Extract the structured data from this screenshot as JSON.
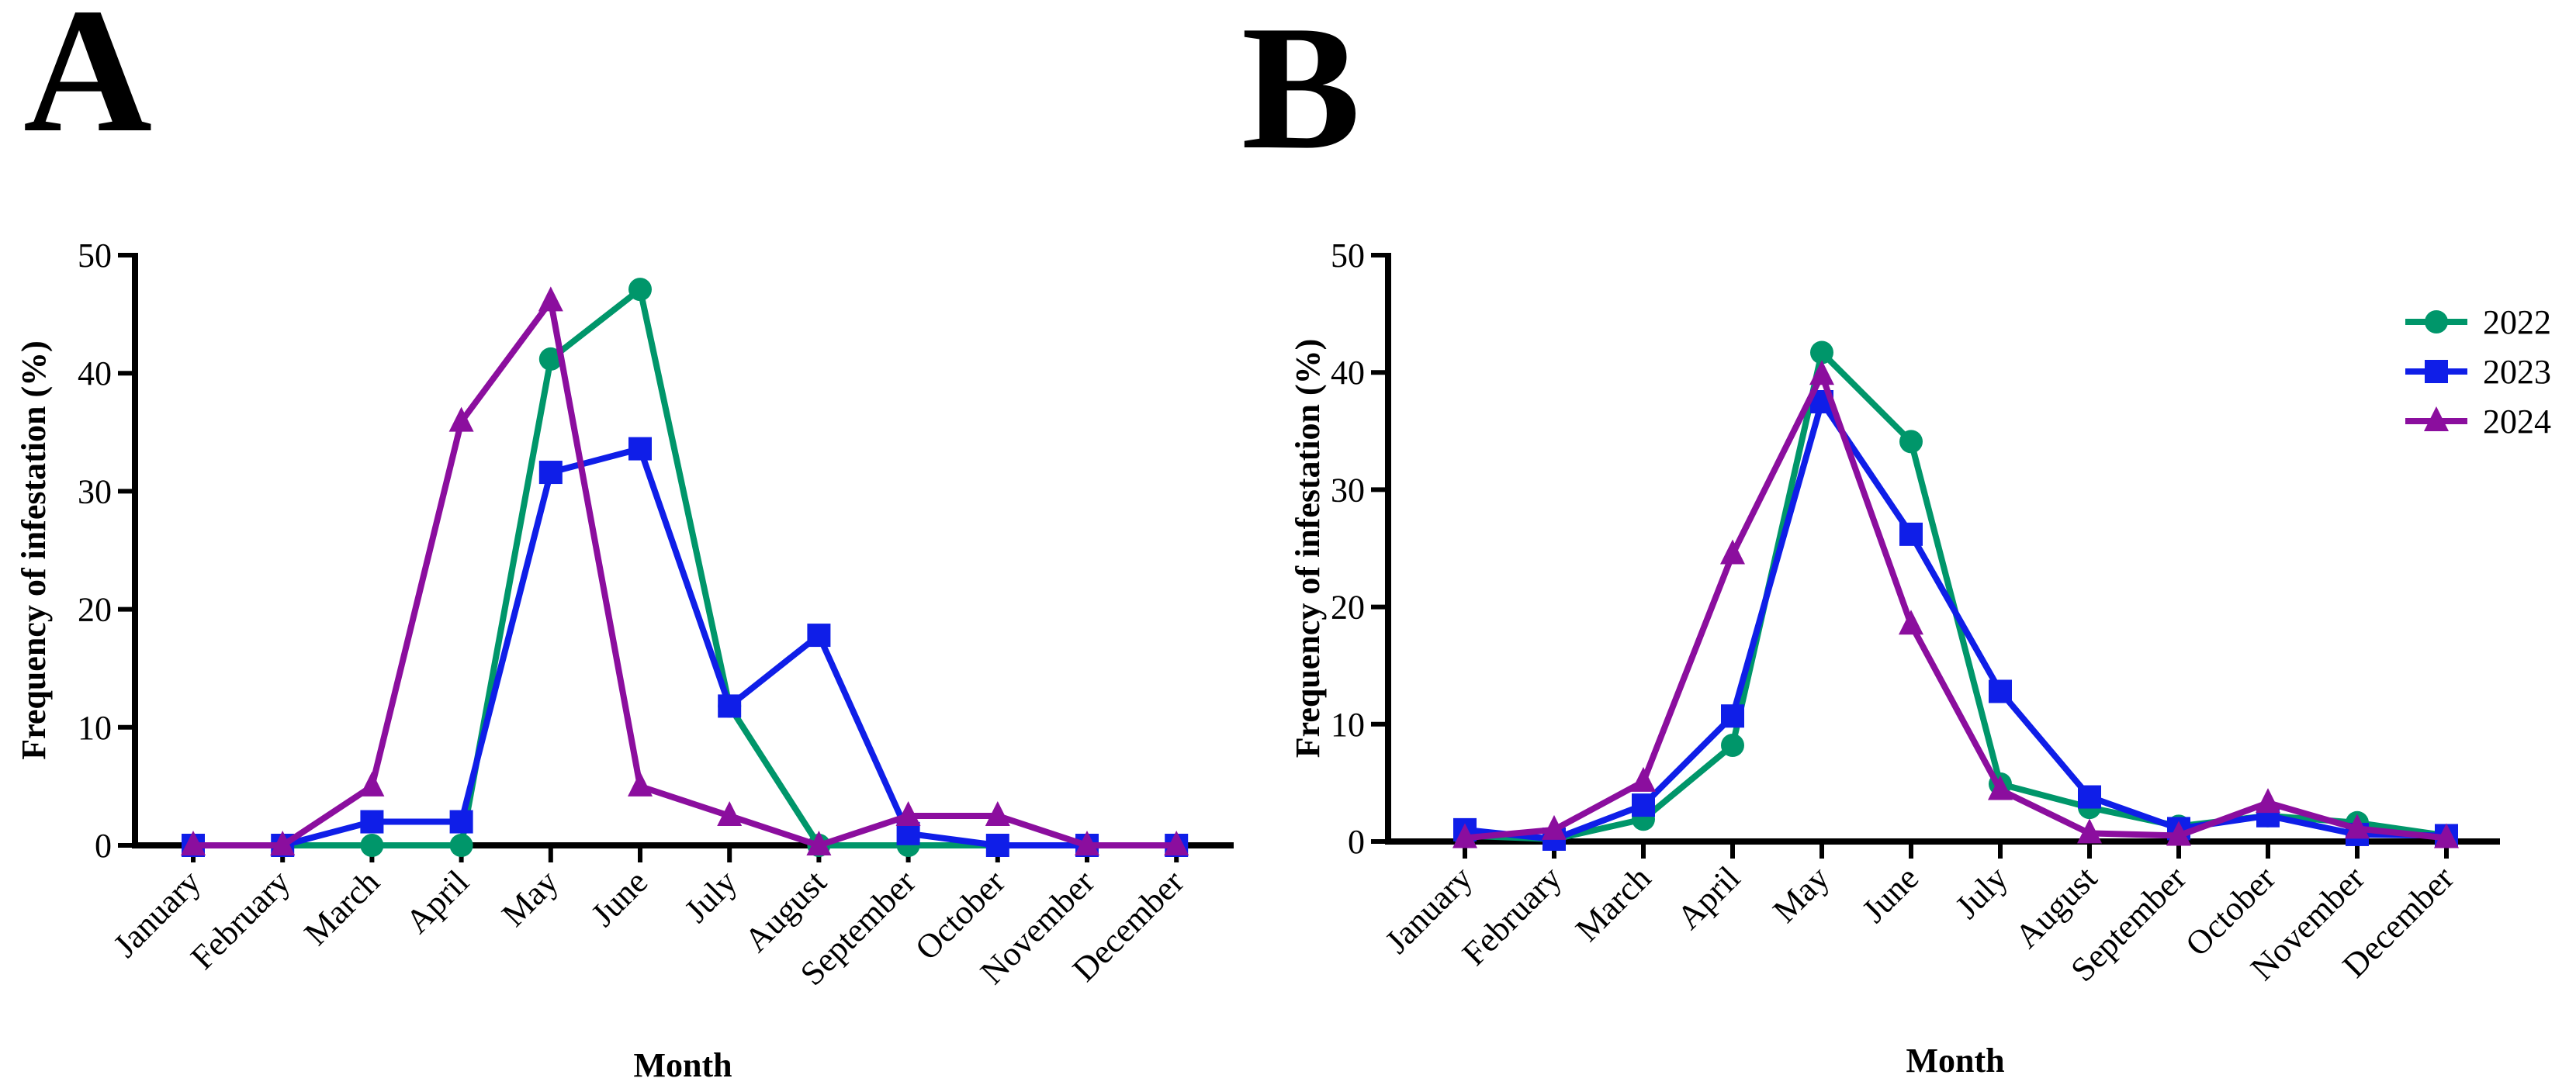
{
  "chart_data": [
    {
      "panel": "A",
      "type": "line",
      "xlabel": "Month",
      "ylabel": "Frequency of infestation  (%)",
      "ylim": [
        0,
        50
      ],
      "yticks": [
        0,
        10,
        20,
        30,
        40,
        50
      ],
      "categories": [
        "January",
        "February",
        "March",
        "April",
        "May",
        "June",
        "July",
        "August",
        "September",
        "October",
        "November",
        "December"
      ],
      "series": [
        {
          "name": "2022",
          "color": "#00966a",
          "marker": "circle",
          "values": [
            0,
            0,
            0,
            0,
            41.2,
            47.1,
            11.8,
            0,
            0,
            0,
            0,
            0
          ]
        },
        {
          "name": "2023",
          "color": "#0f1ee8",
          "marker": "square",
          "values": [
            0,
            0,
            2,
            2,
            31.6,
            33.6,
            11.8,
            17.8,
            1,
            0,
            0,
            0
          ]
        },
        {
          "name": "2024",
          "color": "#8b0e9e",
          "marker": "triangle",
          "values": [
            0,
            0,
            5,
            35.9,
            46.1,
            5,
            2.5,
            0,
            2.5,
            2.5,
            0,
            0
          ]
        }
      ]
    },
    {
      "panel": "B",
      "type": "line",
      "xlabel": "Month",
      "ylabel": "Frequency of infestation  (%)",
      "ylim": [
        0,
        50
      ],
      "yticks": [
        0,
        10,
        20,
        30,
        40,
        50
      ],
      "categories": [
        "January",
        "February",
        "March",
        "April",
        "May",
        "June",
        "July",
        "August",
        "September",
        "October",
        "November",
        "December"
      ],
      "legend_position": "top-right",
      "series": [
        {
          "name": "2022",
          "color": "#00966a",
          "marker": "circle",
          "values": [
            0.5,
            0.2,
            1.9,
            8.2,
            41.7,
            34.1,
            4.9,
            2.9,
            1.3,
            2.2,
            1.6,
            0.5
          ]
        },
        {
          "name": "2023",
          "color": "#0f1ee8",
          "marker": "square",
          "values": [
            1,
            0.2,
            3.1,
            10.7,
            37.5,
            26.2,
            12.8,
            3.8,
            1.1,
            2.2,
            0.6,
            0.5
          ]
        },
        {
          "name": "2024",
          "color": "#8b0e9e",
          "marker": "triangle",
          "values": [
            0.3,
            1,
            5.1,
            24.5,
            39.8,
            18.5,
            4.4,
            0.7,
            0.5,
            3.3,
            1.1,
            0.3
          ]
        }
      ]
    }
  ]
}
